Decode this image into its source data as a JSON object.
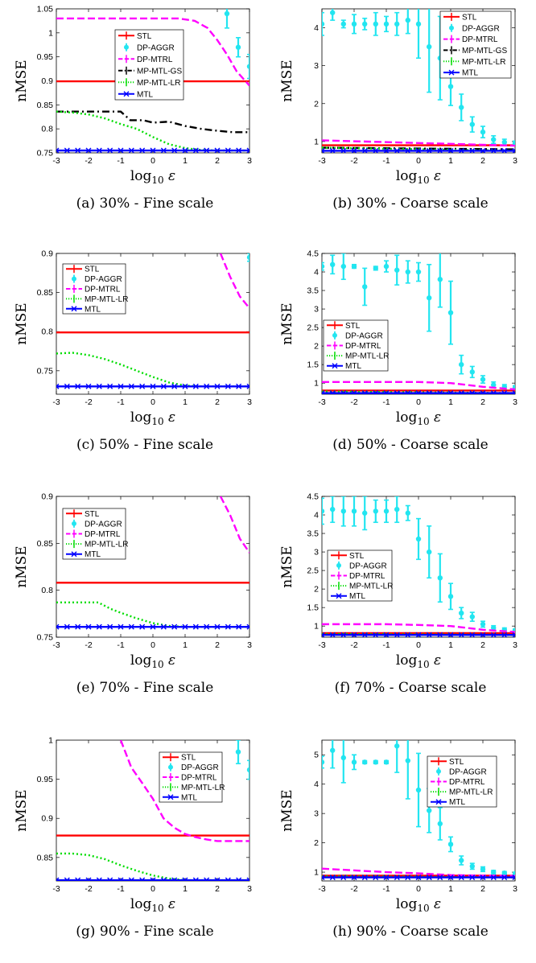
{
  "xlabel": "log10 ε",
  "ylabel": "nMSE",
  "methods": [
    {
      "key": "STL",
      "label": "STL",
      "color": "#ff0000",
      "dash": "",
      "marker": "bar"
    },
    {
      "key": "DP-AGGR",
      "label": "DP-AGGR",
      "color": "#22e5f0",
      "dash": "",
      "marker": "dot"
    },
    {
      "key": "DP-MTRL",
      "label": "DP-MTRL",
      "color": "#ff00ff",
      "dash": "9,4",
      "marker": "bar"
    },
    {
      "key": "MP-MTL-GS",
      "label": "MP-MTL-GS",
      "color": "#000000",
      "dash": "9,4,2,4",
      "marker": "bar"
    },
    {
      "key": "MP-MTL-LR",
      "label": "MP-MTL-LR",
      "color": "#00dd00",
      "dash": "2,3",
      "marker": "bar"
    },
    {
      "key": "MTL",
      "label": "MTL",
      "color": "#0000ff",
      "dash": "",
      "marker": "x"
    }
  ],
  "chart_data": [
    {
      "id": "a",
      "type": "line",
      "caption": "(a) 30% - Fine scale",
      "xlim": [
        -3,
        3
      ],
      "ylim": [
        0.75,
        1.05
      ],
      "yticks": [
        0.75,
        0.8,
        0.85,
        0.9,
        0.95,
        1,
        1.05
      ],
      "ytick_labels": [
        "0.75",
        "0.8",
        "0.85",
        "0.9",
        "0.95",
        "1",
        "1.05"
      ],
      "legend": [
        "STL",
        "DP-AGGR",
        "DP-MTRL",
        "MP-MTL-GS",
        "MP-MTL-LR",
        "MTL"
      ],
      "series": [
        {
          "name": "STL",
          "x": [
            -3,
            3
          ],
          "y": [
            0.899,
            0.899
          ]
        },
        {
          "name": "DP-AGGR",
          "x": [
            2.3,
            2.65,
            3.0
          ],
          "y": [
            1.04,
            0.97,
            0.93
          ],
          "err": [
            0.03,
            0.02,
            0.025
          ]
        },
        {
          "name": "DP-MTRL",
          "x": [
            -3,
            -2,
            -1,
            0,
            0.8,
            1.3,
            1.7,
            2.0,
            2.3,
            2.6,
            3.0
          ],
          "y": [
            1.03,
            1.03,
            1.03,
            1.03,
            1.03,
            1.025,
            1.01,
            0.985,
            0.955,
            0.92,
            0.89
          ]
        },
        {
          "name": "MP-MTL-GS",
          "x": [
            -3,
            -2.5,
            -2,
            -1.5,
            -1,
            -0.7,
            -0.3,
            0,
            0.5,
            1,
            1.5,
            2,
            2.5,
            3
          ],
          "y": [
            0.836,
            0.836,
            0.836,
            0.836,
            0.836,
            0.818,
            0.818,
            0.813,
            0.815,
            0.806,
            0.8,
            0.796,
            0.793,
            0.793
          ]
        },
        {
          "name": "MP-MTL-LR",
          "x": [
            -3,
            -2.5,
            -2,
            -1.5,
            -1,
            -0.5,
            0,
            0.5,
            1,
            1.5,
            2,
            2.5,
            3
          ],
          "y": [
            0.836,
            0.834,
            0.83,
            0.822,
            0.81,
            0.8,
            0.783,
            0.768,
            0.76,
            0.756,
            0.755,
            0.755,
            0.755
          ]
        },
        {
          "name": "MTL",
          "x": [
            -3,
            3
          ],
          "y": [
            0.755,
            0.755
          ]
        }
      ]
    },
    {
      "id": "b",
      "type": "line",
      "caption": "(b) 30% - Coarse scale",
      "xlim": [
        -3,
        3
      ],
      "ylim": [
        0.7,
        4.5
      ],
      "yticks": [
        1,
        2,
        3,
        4
      ],
      "ytick_labels": [
        "1",
        "2",
        "3",
        "4"
      ],
      "legend": [
        "STL",
        "DP-AGGR",
        "DP-MTRL",
        "MP-MTL-GS",
        "MP-MTL-LR",
        "MTL"
      ],
      "series": [
        {
          "name": "STL",
          "x": [
            -3,
            3
          ],
          "y": [
            0.9,
            0.9
          ]
        },
        {
          "name": "DP-AGGR",
          "x": [
            -3,
            -2.67,
            -2.33,
            -2,
            -1.67,
            -1.33,
            -1,
            -0.67,
            -0.33,
            0,
            0.33,
            0.67,
            1,
            1.33,
            1.67,
            2,
            2.33,
            2.67,
            3
          ],
          "y": [
            4.1,
            4.4,
            4.1,
            4.1,
            4.1,
            4.1,
            4.1,
            4.1,
            4.2,
            4.1,
            3.5,
            3.2,
            2.45,
            1.9,
            1.45,
            1.25,
            1.05,
            0.98,
            0.95
          ],
          "err": [
            0.3,
            0.2,
            0.1,
            0.25,
            0.15,
            0.3,
            0.2,
            0.3,
            0.35,
            0.9,
            1.2,
            1.1,
            0.5,
            0.35,
            0.2,
            0.15,
            0.1,
            0.08,
            0.06
          ]
        },
        {
          "name": "DP-MTRL",
          "x": [
            -3,
            3
          ],
          "y": [
            1.03,
            0.89
          ]
        },
        {
          "name": "MP-MTL-GS",
          "x": [
            -3,
            3
          ],
          "y": [
            0.836,
            0.793
          ]
        },
        {
          "name": "MP-MTL-LR",
          "x": [
            -3,
            3
          ],
          "y": [
            0.836,
            0.755
          ]
        },
        {
          "name": "MTL",
          "x": [
            -3,
            3
          ],
          "y": [
            0.755,
            0.755
          ]
        }
      ]
    },
    {
      "id": "c",
      "type": "line",
      "caption": "(c) 50% - Fine scale",
      "xlim": [
        -3,
        3
      ],
      "ylim": [
        0.72,
        0.9
      ],
      "yticks": [
        0.75,
        0.8,
        0.85,
        0.9
      ],
      "ytick_labels": [
        "0.75",
        "0.8",
        "0.85",
        "0.9"
      ],
      "legend": [
        "STL",
        "DP-AGGR",
        "DP-MTRL",
        "MP-MTL-LR",
        "MTL"
      ],
      "series": [
        {
          "name": "STL",
          "x": [
            -3,
            3
          ],
          "y": [
            0.799,
            0.799
          ]
        },
        {
          "name": "DP-AGGR",
          "x": [
            3.0
          ],
          "y": [
            0.895
          ],
          "err": [
            0.005
          ]
        },
        {
          "name": "DP-MTRL",
          "x": [
            2.1,
            2.4,
            2.7,
            3.0
          ],
          "y": [
            0.9,
            0.87,
            0.845,
            0.83
          ]
        },
        {
          "name": "MP-MTL-LR",
          "x": [
            -3,
            -2.5,
            -2,
            -1.5,
            -1,
            -0.5,
            0,
            0.5,
            1,
            1.5,
            2,
            2.5,
            3
          ],
          "y": [
            0.772,
            0.773,
            0.77,
            0.765,
            0.758,
            0.75,
            0.742,
            0.735,
            0.731,
            0.73,
            0.73,
            0.73,
            0.73
          ]
        },
        {
          "name": "MTL",
          "x": [
            -3,
            3
          ],
          "y": [
            0.73,
            0.73
          ]
        }
      ]
    },
    {
      "id": "d",
      "type": "line",
      "caption": "(d) 50% - Coarse scale",
      "xlim": [
        -3,
        3
      ],
      "ylim": [
        0.7,
        4.5
      ],
      "yticks": [
        1,
        1.5,
        2,
        2.5,
        3,
        3.5,
        4,
        4.5
      ],
      "ytick_labels": [
        "1",
        "1.5",
        "2",
        "2.5",
        "3",
        "3.5",
        "4",
        "4.5"
      ],
      "legend": [
        "STL",
        "DP-AGGR",
        "DP-MTRL",
        "MP-MTL-LR",
        "MTL"
      ],
      "series": [
        {
          "name": "STL",
          "x": [
            -3,
            3
          ],
          "y": [
            0.8,
            0.8
          ]
        },
        {
          "name": "DP-AGGR",
          "x": [
            -3,
            -2.67,
            -2.33,
            -2,
            -1.67,
            -1.33,
            -1,
            -0.67,
            -0.33,
            0,
            0.33,
            0.67,
            1,
            1.33,
            1.67,
            2,
            2.33,
            2.67,
            3
          ],
          "y": [
            4.15,
            4.2,
            4.15,
            4.15,
            3.6,
            4.1,
            4.15,
            4.05,
            4.0,
            4.0,
            3.3,
            3.8,
            2.9,
            1.5,
            1.3,
            1.1,
            0.95,
            0.9,
            0.88
          ],
          "err": [
            0.1,
            0.25,
            0.35,
            0.05,
            0.5,
            0.05,
            0.15,
            0.4,
            0.3,
            0.25,
            0.9,
            0.75,
            0.85,
            0.25,
            0.15,
            0.1,
            0.08,
            0.06,
            0.05
          ]
        },
        {
          "name": "DP-MTRL",
          "x": [
            -3,
            -1,
            0,
            1,
            2,
            3
          ],
          "y": [
            1.03,
            1.03,
            1.03,
            1.0,
            0.9,
            0.83
          ]
        },
        {
          "name": "MP-MTL-LR",
          "x": [
            -3,
            3
          ],
          "y": [
            0.772,
            0.73
          ]
        },
        {
          "name": "MTL",
          "x": [
            -3,
            3
          ],
          "y": [
            0.73,
            0.73
          ]
        }
      ]
    },
    {
      "id": "e",
      "type": "line",
      "caption": "(e) 70% - Fine scale",
      "xlim": [
        -3,
        3
      ],
      "ylim": [
        0.75,
        0.9
      ],
      "yticks": [
        0.75,
        0.8,
        0.85,
        0.9
      ],
      "ytick_labels": [
        "0.75",
        "0.8",
        "0.85",
        "0.9"
      ],
      "legend": [
        "STL",
        "DP-AGGR",
        "DP-MTRL",
        "MP-MTL-LR",
        "MTL"
      ],
      "series": [
        {
          "name": "STL",
          "x": [
            -3,
            3
          ],
          "y": [
            0.808,
            0.808
          ]
        },
        {
          "name": "DP-MTRL",
          "x": [
            2.1,
            2.4,
            2.7,
            3.0
          ],
          "y": [
            0.9,
            0.88,
            0.855,
            0.84
          ]
        },
        {
          "name": "MP-MTL-LR",
          "x": [
            -3,
            -2.5,
            -2,
            -1.7,
            -1.3,
            -1,
            -0.5,
            0,
            0.5,
            1,
            1.5,
            2,
            2.5,
            3
          ],
          "y": [
            0.787,
            0.787,
            0.787,
            0.787,
            0.78,
            0.776,
            0.77,
            0.765,
            0.762,
            0.761,
            0.761,
            0.761,
            0.761,
            0.761
          ]
        },
        {
          "name": "MTL",
          "x": [
            -3,
            3
          ],
          "y": [
            0.761,
            0.761
          ]
        }
      ]
    },
    {
      "id": "f",
      "type": "line",
      "caption": "(f) 70% - Coarse scale",
      "xlim": [
        -3,
        3
      ],
      "ylim": [
        0.7,
        4.5
      ],
      "yticks": [
        1,
        1.5,
        2,
        2.5,
        3,
        3.5,
        4,
        4.5
      ],
      "ytick_labels": [
        "1",
        "1.5",
        "2",
        "2.5",
        "3",
        "3.5",
        "4",
        "4.5"
      ],
      "legend": [
        "STL",
        "DP-AGGR",
        "DP-MTRL",
        "MP-MTL-LR",
        "MTL"
      ],
      "series": [
        {
          "name": "STL",
          "x": [
            -3,
            3
          ],
          "y": [
            0.81,
            0.81
          ]
        },
        {
          "name": "DP-AGGR",
          "x": [
            -3,
            -2.67,
            -2.33,
            -2,
            -1.67,
            -1.33,
            -1,
            -0.67,
            -0.33,
            0,
            0.33,
            0.67,
            1,
            1.33,
            1.67,
            2,
            2.33,
            2.67,
            3
          ],
          "y": [
            4.1,
            4.15,
            4.1,
            4.1,
            4.05,
            4.1,
            4.1,
            4.15,
            4.05,
            3.35,
            3.0,
            2.3,
            1.8,
            1.35,
            1.25,
            1.05,
            0.95,
            0.9,
            0.88
          ],
          "err": [
            0.35,
            0.35,
            0.4,
            0.4,
            0.45,
            0.3,
            0.3,
            0.35,
            0.2,
            0.55,
            0.7,
            0.65,
            0.35,
            0.15,
            0.12,
            0.08,
            0.06,
            0.05,
            0.04
          ]
        },
        {
          "name": "DP-MTRL",
          "x": [
            -3,
            -1,
            0,
            1,
            2,
            3
          ],
          "y": [
            1.05,
            1.05,
            1.03,
            1.0,
            0.9,
            0.84
          ]
        },
        {
          "name": "MP-MTL-LR",
          "x": [
            -3,
            3
          ],
          "y": [
            0.787,
            0.761
          ]
        },
        {
          "name": "MTL",
          "x": [
            -3,
            3
          ],
          "y": [
            0.761,
            0.761
          ]
        }
      ]
    },
    {
      "id": "g",
      "type": "line",
      "caption": "(g) 90% - Fine scale",
      "xlim": [
        -3,
        3
      ],
      "ylim": [
        0.82,
        1.0
      ],
      "yticks": [
        0.85,
        0.9,
        0.95,
        1
      ],
      "ytick_labels": [
        "0.85",
        "0.9",
        "0.95",
        "1"
      ],
      "legend": [
        "STL",
        "DP-AGGR",
        "DP-MTRL",
        "MP-MTL-LR",
        "MTL"
      ],
      "series": [
        {
          "name": "STL",
          "x": [
            -3,
            3
          ],
          "y": [
            0.878,
            0.878
          ]
        },
        {
          "name": "DP-AGGR",
          "x": [
            2.65,
            3.0
          ],
          "y": [
            0.985,
            0.962
          ],
          "err": [
            0.015,
            0.012
          ]
        },
        {
          "name": "DP-MTRL",
          "x": [
            -1,
            -0.67,
            -0.33,
            0,
            0.33,
            0.67,
            1,
            1.33,
            1.67,
            2,
            2.33,
            2.67,
            3
          ],
          "y": [
            1.0,
            0.965,
            0.945,
            0.925,
            0.9,
            0.888,
            0.88,
            0.876,
            0.873,
            0.871,
            0.871,
            0.871,
            0.871
          ]
        },
        {
          "name": "MP-MTL-LR",
          "x": [
            -3,
            -2.5,
            -2,
            -1.5,
            -1,
            -0.5,
            0,
            0.5,
            1,
            1.5,
            2,
            2.5,
            3
          ],
          "y": [
            0.855,
            0.855,
            0.853,
            0.848,
            0.84,
            0.833,
            0.827,
            0.823,
            0.821,
            0.821,
            0.821,
            0.821,
            0.821
          ]
        },
        {
          "name": "MTL",
          "x": [
            -3,
            3
          ],
          "y": [
            0.821,
            0.821
          ]
        }
      ]
    },
    {
      "id": "h",
      "type": "line",
      "caption": "(h) 90% - Coarse scale",
      "xlim": [
        -3,
        3
      ],
      "ylim": [
        0.7,
        5.5
      ],
      "yticks": [
        1,
        2,
        3,
        4,
        5
      ],
      "ytick_labels": [
        "1",
        "2",
        "3",
        "4",
        "5"
      ],
      "legend": [
        "STL",
        "DP-AGGR",
        "DP-MTRL",
        "MP-MTL-LR",
        "MTL"
      ],
      "series": [
        {
          "name": "STL",
          "x": [
            -3,
            3
          ],
          "y": [
            0.88,
            0.88
          ]
        },
        {
          "name": "DP-AGGR",
          "x": [
            -3,
            -2.67,
            -2.33,
            -2,
            -1.67,
            -1.33,
            -1,
            -0.67,
            -0.33,
            0,
            0.33,
            0.67,
            1,
            1.33,
            1.67,
            2,
            2.33,
            2.67,
            3
          ],
          "y": [
            4.75,
            5.15,
            4.9,
            4.75,
            4.75,
            4.75,
            4.75,
            5.3,
            4.8,
            3.8,
            3.1,
            2.65,
            1.95,
            1.4,
            1.2,
            1.1,
            1.0,
            0.97,
            0.95
          ],
          "err": [
            0.2,
            0.6,
            0.85,
            0.25,
            0.05,
            0.05,
            0.05,
            0.9,
            1.3,
            1.25,
            0.75,
            0.55,
            0.25,
            0.15,
            0.1,
            0.08,
            0.06,
            0.05,
            0.04
          ]
        },
        {
          "name": "DP-MTRL",
          "x": [
            -3,
            -1,
            0,
            1,
            2,
            3
          ],
          "y": [
            1.12,
            1.0,
            0.96,
            0.9,
            0.88,
            0.871
          ]
        },
        {
          "name": "MP-MTL-LR",
          "x": [
            -3,
            3
          ],
          "y": [
            0.855,
            0.821
          ]
        },
        {
          "name": "MTL",
          "x": [
            -3,
            3
          ],
          "y": [
            0.821,
            0.821
          ]
        }
      ]
    }
  ]
}
